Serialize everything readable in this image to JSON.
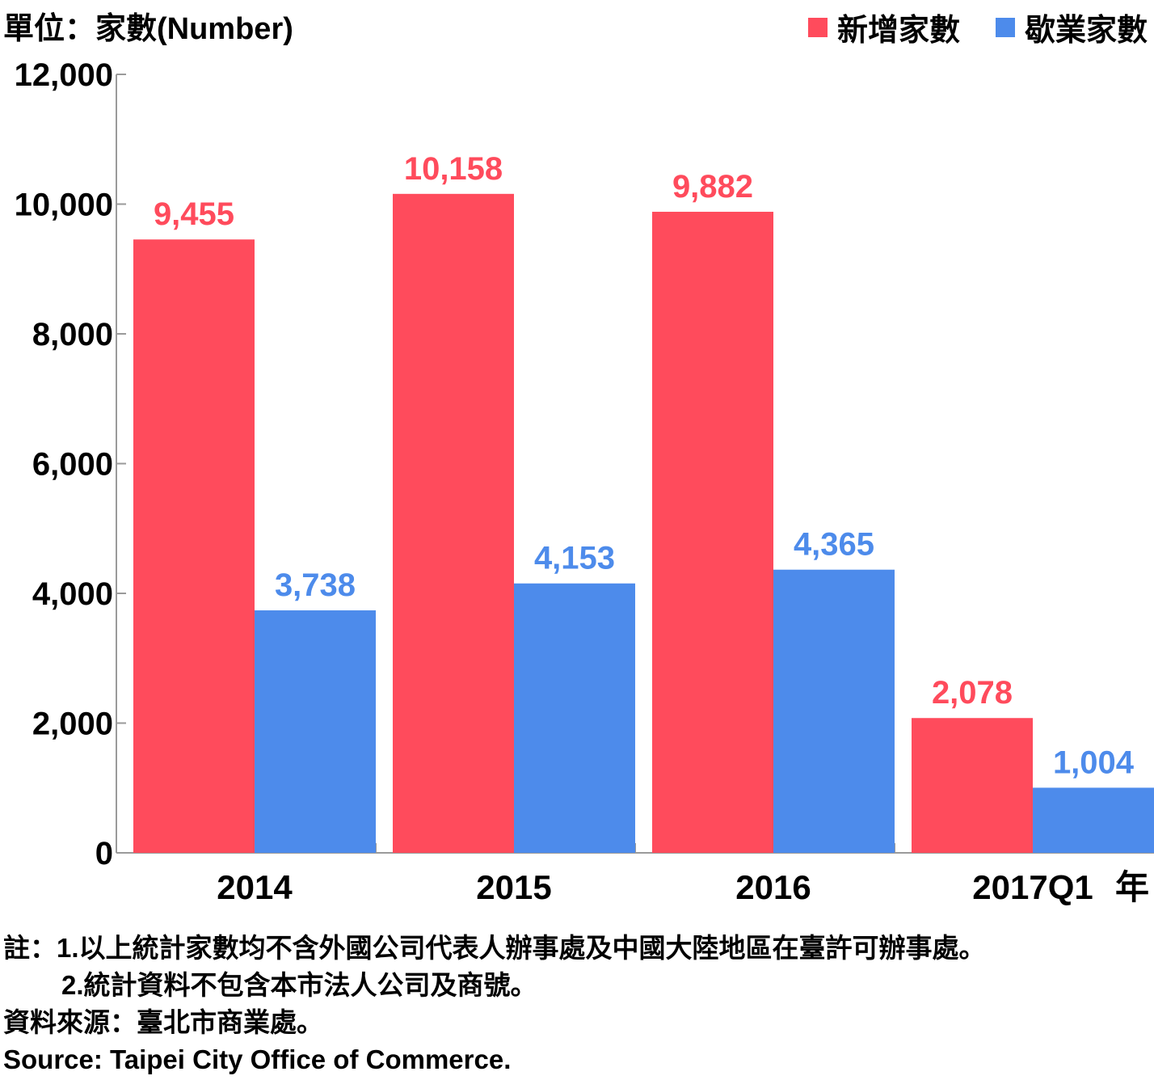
{
  "unit_label": "單位：家數(Number)",
  "legend": [
    {
      "label": "新增家數",
      "color": "#ff4b5c"
    },
    {
      "label": "歇業家數",
      "color": "#4d8beb"
    }
  ],
  "chart_data": {
    "type": "bar",
    "categories": [
      "2014",
      "2015",
      "2016",
      "2017Q1"
    ],
    "series": [
      {
        "name": "新增家數",
        "color": "#ff4b5c",
        "values": [
          9455,
          10158,
          9882,
          2078
        ],
        "labels": [
          "9,455",
          "10,158",
          "9,882",
          "2,078"
        ]
      },
      {
        "name": "歇業家數",
        "color": "#4d8beb",
        "values": [
          3738,
          4153,
          4365,
          1004
        ],
        "labels": [
          "3,738",
          "4,153",
          "4,365",
          "1,004"
        ]
      }
    ],
    "xlabel": "年",
    "ylabel": "單位：家數(Number)",
    "ylim": [
      0,
      12000
    ],
    "yticks": [
      0,
      2000,
      4000,
      6000,
      8000,
      10000,
      12000
    ],
    "ytick_labels": [
      "0",
      "2,000",
      "4,000",
      "6,000",
      "8,000",
      "10,000",
      "12,000"
    ],
    "grid": false,
    "legend_position": "top-right"
  },
  "notes": {
    "note1": "註：1.以上統計家數均不含外國公司代表人辦事處及中國大陸地區在臺許可辦事處。",
    "note2": "2.統計資料不包含本市法人公司及商號。",
    "source_zh": "資料來源：臺北市商業處。",
    "source_en": "Source: Taipei City Office of Commerce."
  }
}
